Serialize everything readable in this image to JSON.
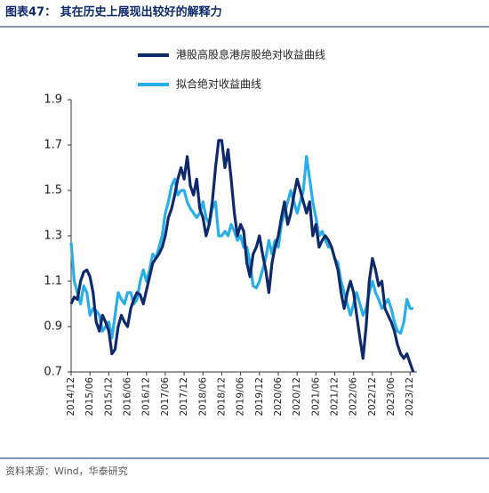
{
  "chart_data": {
    "type": "line",
    "title": "图表47：  其在历史上展现出较好的解释力",
    "source": "资料来源：Wind，华泰研究",
    "categories": [
      "2014/12",
      null,
      null,
      null,
      null,
      null,
      "2015/06",
      null,
      null,
      null,
      null,
      null,
      "2015/12",
      null,
      null,
      null,
      null,
      null,
      "2016/06",
      null,
      null,
      null,
      null,
      null,
      "2016/12",
      null,
      null,
      null,
      null,
      null,
      "2017/06",
      null,
      null,
      null,
      null,
      null,
      "2017/12",
      null,
      null,
      null,
      null,
      null,
      "2018/06",
      null,
      null,
      null,
      null,
      null,
      "2018/12",
      null,
      null,
      null,
      null,
      null,
      "2019/06",
      null,
      null,
      null,
      null,
      null,
      "2019/12",
      null,
      null,
      null,
      null,
      null,
      "2020/06",
      null,
      null,
      null,
      null,
      null,
      "2020/12",
      null,
      null,
      null,
      null,
      null,
      "2021/06",
      null,
      null,
      null,
      null,
      null,
      "2021/12",
      null,
      null,
      null,
      null,
      null,
      "2022/06",
      null,
      null,
      null,
      null,
      null,
      "2022/12",
      null,
      null,
      null,
      null,
      null,
      "2023/06",
      null,
      null,
      null,
      null,
      null,
      "2023/12",
      null
    ],
    "series": [
      {
        "name": "港股高股息港房股绝对收益曲线",
        "color": "#0f2a6b",
        "values": [
          1.0,
          1.03,
          1.02,
          1.1,
          1.14,
          1.15,
          1.12,
          1.05,
          0.92,
          0.88,
          0.95,
          0.92,
          0.88,
          0.78,
          0.8,
          0.9,
          0.95,
          0.92,
          0.9,
          0.98,
          1.02,
          1.05,
          1.04,
          1.0,
          1.06,
          1.12,
          1.18,
          1.2,
          1.22,
          1.25,
          1.3,
          1.38,
          1.42,
          1.48,
          1.55,
          1.6,
          1.55,
          1.65,
          1.52,
          1.48,
          1.55,
          1.42,
          1.38,
          1.3,
          1.35,
          1.45,
          1.6,
          1.72,
          1.72,
          1.6,
          1.68,
          1.55,
          1.4,
          1.3,
          1.35,
          1.32,
          1.18,
          1.12,
          1.22,
          1.25,
          1.3,
          1.22,
          1.15,
          1.05,
          1.18,
          1.25,
          1.3,
          1.38,
          1.45,
          1.35,
          1.4,
          1.48,
          1.55,
          1.5,
          1.45,
          1.4,
          1.45,
          1.3,
          1.35,
          1.25,
          1.28,
          1.3,
          1.28,
          1.25,
          1.2,
          1.15,
          1.05,
          0.98,
          1.05,
          1.1,
          1.05,
          0.95,
          0.85,
          0.76,
          0.9,
          1.1,
          1.2,
          1.15,
          1.08,
          1.1,
          0.98,
          0.95,
          0.92,
          0.88,
          0.82,
          0.78,
          0.76,
          0.78,
          0.74,
          0.7
        ]
      },
      {
        "name": "拟合绝对收益曲线",
        "color": "#29aee8",
        "values": [
          1.27,
          1.1,
          1.05,
          1.0,
          1.08,
          1.05,
          0.95,
          0.98,
          0.97,
          0.95,
          0.88,
          0.9,
          0.92,
          0.85,
          0.95,
          1.05,
          1.02,
          1.0,
          1.05,
          1.05,
          1.0,
          1.02,
          1.1,
          1.15,
          1.1,
          1.15,
          1.22,
          1.2,
          1.25,
          1.3,
          1.4,
          1.45,
          1.52,
          1.55,
          1.48,
          1.5,
          1.5,
          1.45,
          1.42,
          1.4,
          1.38,
          1.4,
          1.45,
          1.38,
          1.35,
          1.42,
          1.45,
          1.3,
          1.3,
          1.32,
          1.3,
          1.35,
          1.32,
          1.28,
          1.3,
          1.25,
          1.25,
          1.18,
          1.08,
          1.07,
          1.1,
          1.15,
          1.2,
          1.28,
          1.22,
          1.28,
          1.25,
          1.35,
          1.4,
          1.45,
          1.5,
          1.45,
          1.4,
          1.45,
          1.5,
          1.65,
          1.55,
          1.45,
          1.38,
          1.3,
          1.32,
          1.28,
          1.25,
          1.25,
          1.2,
          1.18,
          1.1,
          1.05,
          1.0,
          0.95,
          1.0,
          1.05,
          1.0,
          0.95,
          0.98,
          1.05,
          1.1,
          1.05,
          1.02,
          0.98,
          1.0,
          1.02,
          0.98,
          0.92,
          0.88,
          0.87,
          0.92,
          1.02,
          0.98,
          0.98
        ]
      }
    ],
    "ylim": [
      0.7,
      1.9
    ],
    "yticks": [
      0.7,
      0.9,
      1.1,
      1.3,
      1.5,
      1.7,
      1.9
    ],
    "grid": false
  }
}
